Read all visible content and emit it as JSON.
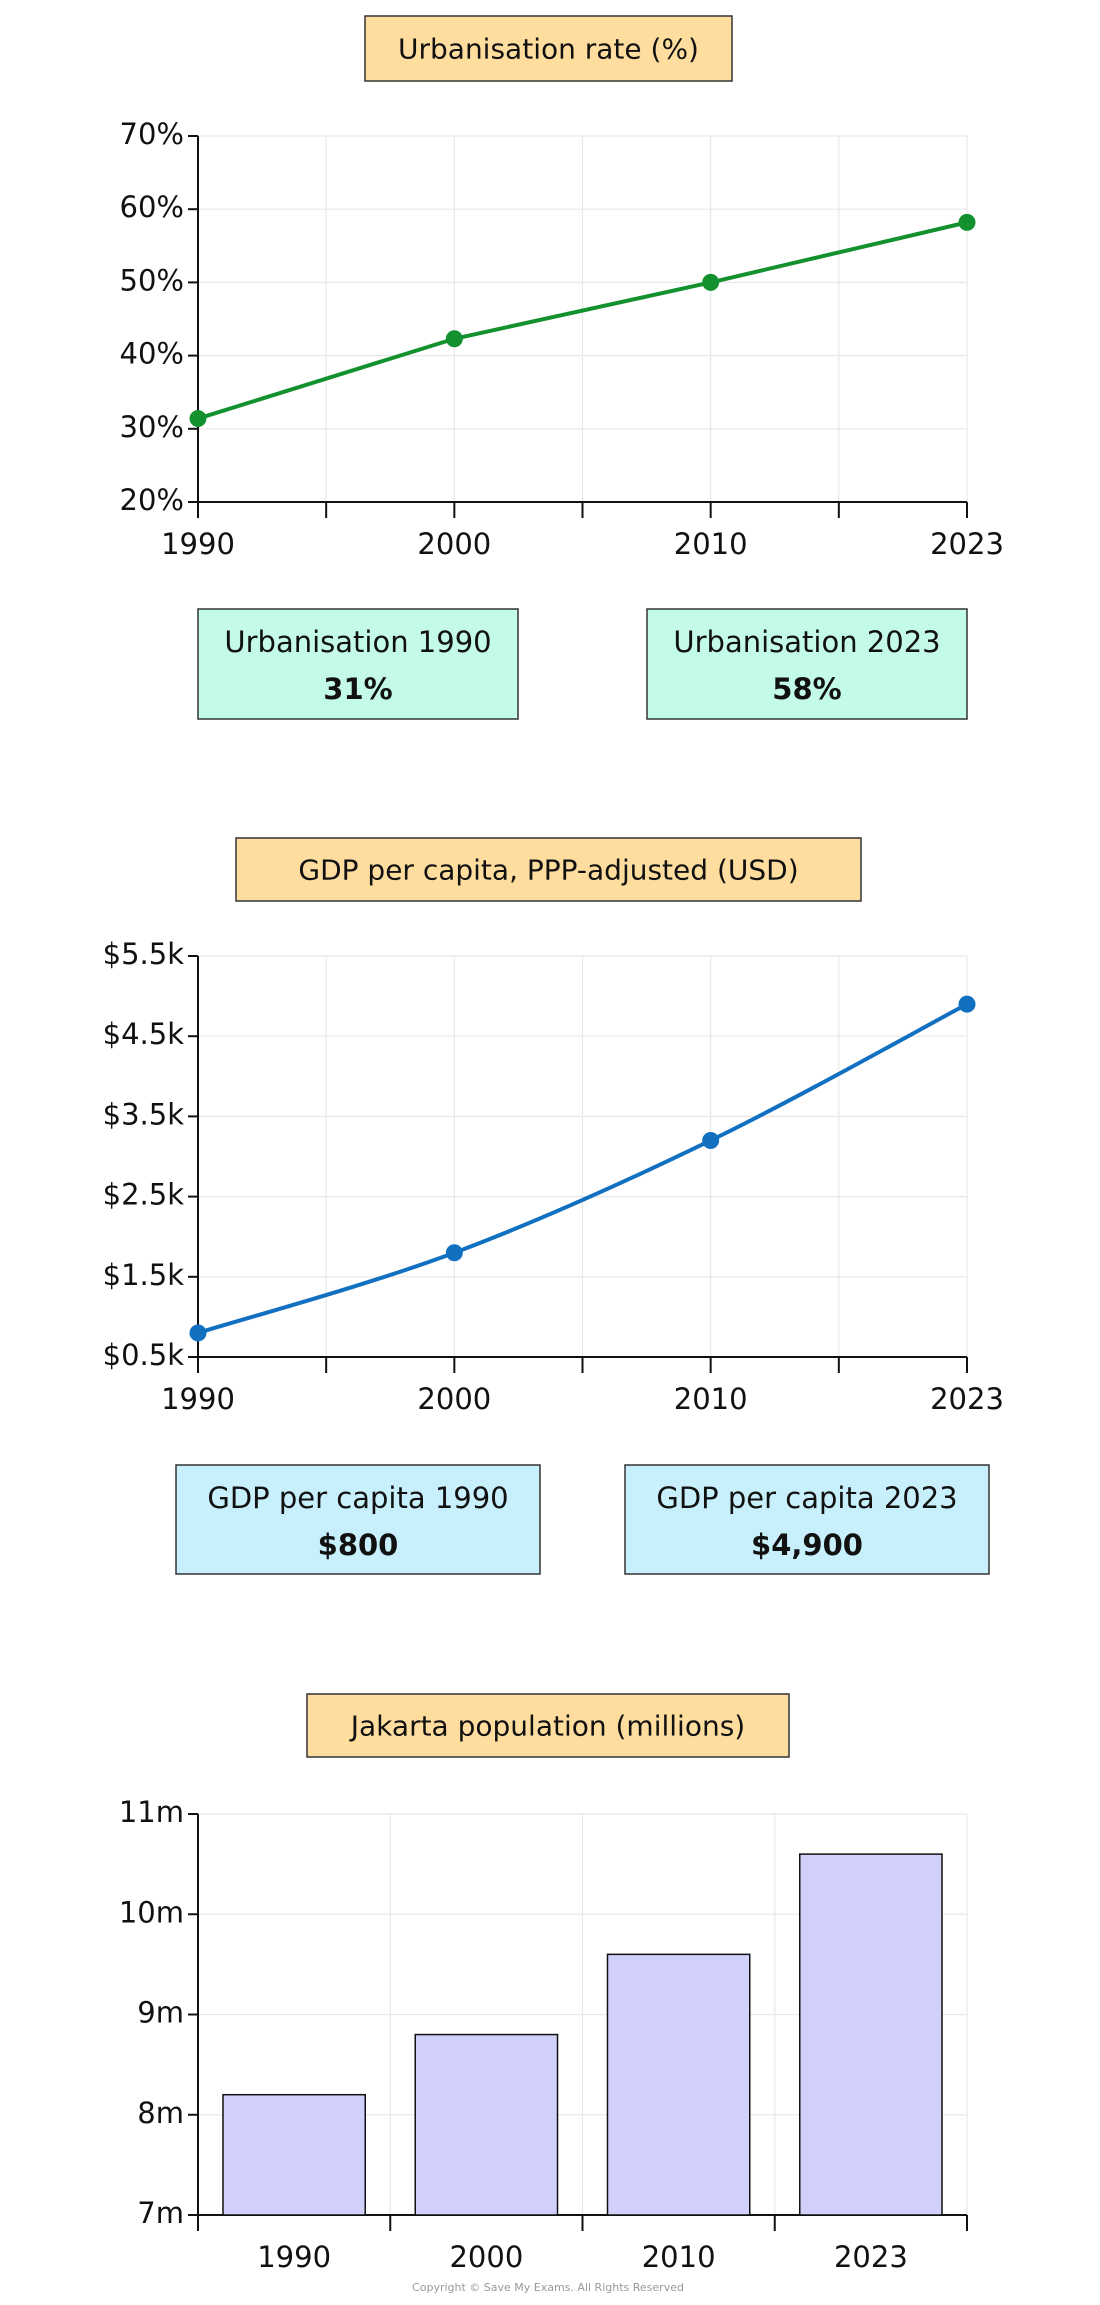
{
  "chart_data": [
    {
      "type": "line",
      "title": "Urbanisation rate (%)",
      "categories": [
        "1990",
        "2000",
        "2010",
        "2023"
      ],
      "series": [
        {
          "name": "Urbanisation rate",
          "color": "#14912f",
          "values": [
            31.4,
            42.3,
            50,
            58.2
          ]
        }
      ],
      "ylim": [
        20,
        70
      ],
      "yticks": [
        {
          "value": 20,
          "label": "20%"
        },
        {
          "value": 30,
          "label": "30%"
        },
        {
          "value": 40,
          "label": "40%"
        },
        {
          "value": 50,
          "label": "50%"
        },
        {
          "value": 60,
          "label": "60%"
        },
        {
          "value": 70,
          "label": "70%"
        }
      ],
      "grid": true,
      "smooth": false
    },
    {
      "type": "line",
      "title": "GDP per capita, PPP-adjusted (USD)",
      "categories": [
        "1990",
        "2000",
        "2010",
        "2023"
      ],
      "series": [
        {
          "name": "GDP per capita",
          "color": "#1171c0",
          "values": [
            800,
            1800,
            3200,
            4900
          ]
        }
      ],
      "ylim": [
        500,
        5500
      ],
      "yticks": [
        {
          "value": 500,
          "label": "$0.5k"
        },
        {
          "value": 1500,
          "label": "$1.5k"
        },
        {
          "value": 2500,
          "label": "$2.5k"
        },
        {
          "value": 3500,
          "label": "$3.5k"
        },
        {
          "value": 4500,
          "label": "$4.5k"
        },
        {
          "value": 5500,
          "label": "$5.5k"
        }
      ],
      "grid": true,
      "smooth": true
    },
    {
      "type": "bar",
      "title": "Jakarta population (millions)",
      "categories": [
        "1990",
        "2000",
        "2010",
        "2023"
      ],
      "values": [
        8.2,
        8.8,
        9.6,
        10.6
      ],
      "color": "#d0d0fa",
      "ylim": [
        7,
        11
      ],
      "yticks": [
        {
          "value": 7,
          "label": "7m"
        },
        {
          "value": 8,
          "label": "8m"
        },
        {
          "value": 9,
          "label": "9m"
        },
        {
          "value": 10,
          "label": "10m"
        },
        {
          "value": 11,
          "label": "11m"
        }
      ],
      "grid": true
    }
  ],
  "summary_boxes": [
    [
      {
        "label": "Urbanisation 1990",
        "value": "31%"
      },
      {
        "label": "Urbanisation 2023",
        "value": "58%"
      }
    ],
    [
      {
        "label": "GDP per capita 1990",
        "value": "$800"
      },
      {
        "label": "GDP per capita 2023",
        "value": "$4,900"
      }
    ]
  ],
  "footer": "Copyright © Save My Exams. All Rights Reserved"
}
